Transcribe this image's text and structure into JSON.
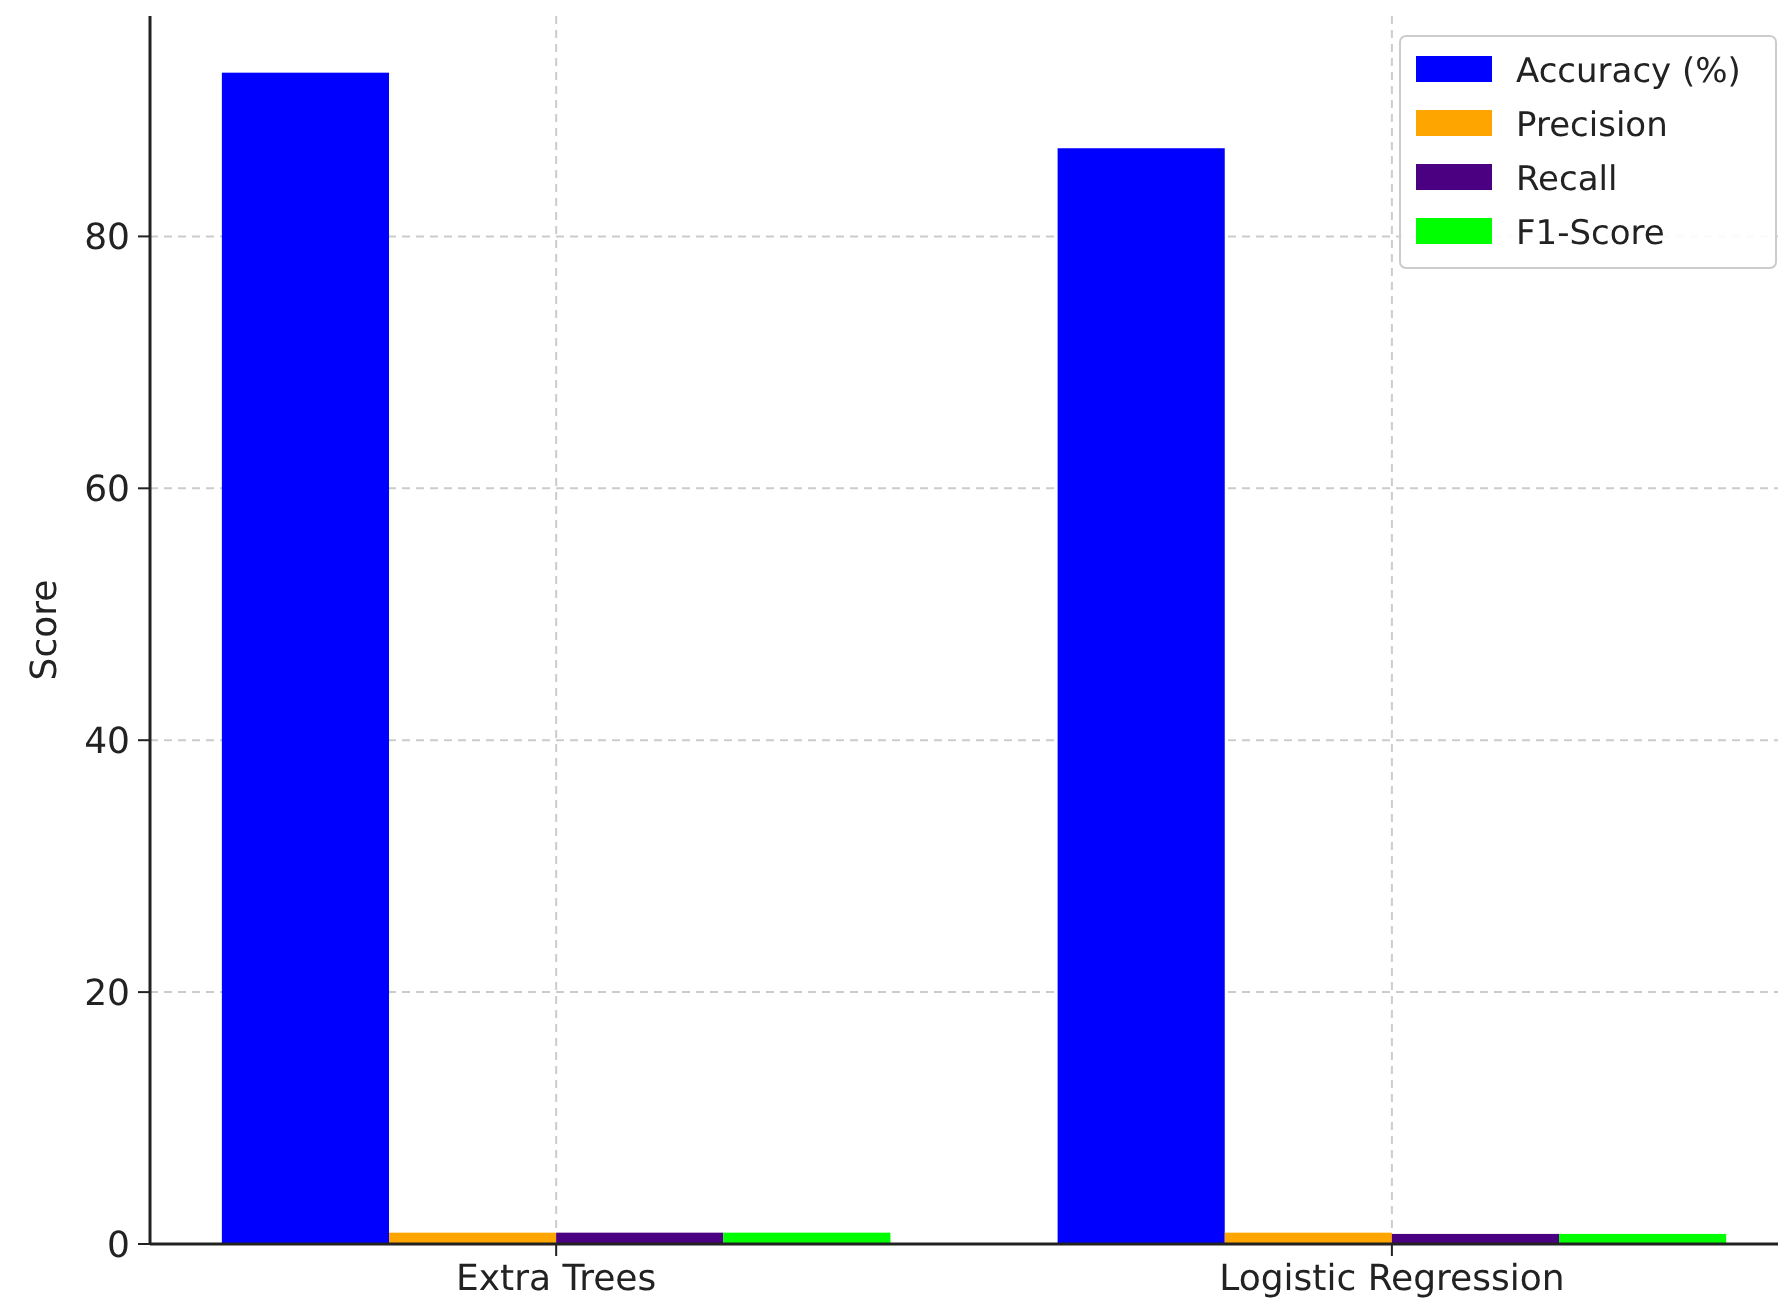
{
  "chart_data": {
    "type": "bar",
    "ylabel": "Score",
    "categories": [
      "Extra Trees",
      "Logistic Regression"
    ],
    "series": [
      {
        "name": "Accuracy (%)",
        "color": "#0000ff",
        "values": [
          93,
          87
        ]
      },
      {
        "name": "Precision",
        "color": "#ffa500",
        "values": [
          0.9,
          0.9
        ]
      },
      {
        "name": "Recall",
        "color": "#4b0082",
        "values": [
          0.9,
          0.8
        ]
      },
      {
        "name": "F1-Score",
        "color": "#00ff00",
        "values": [
          0.9,
          0.8
        ]
      }
    ],
    "ylim": [
      0,
      97.5
    ],
    "yticks": [
      0,
      20,
      40,
      60,
      80
    ],
    "grid": true,
    "legend": "top right"
  }
}
